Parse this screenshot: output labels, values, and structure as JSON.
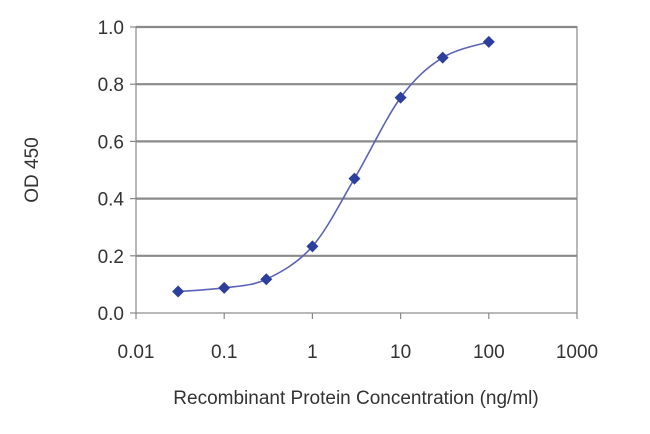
{
  "chart_data": {
    "type": "line",
    "title": "",
    "xlabel": "Recombinant Protein Concentration (ng/ml)",
    "ylabel": "OD 450",
    "x_scale": "log",
    "xlim": [
      0.01,
      1000
    ],
    "ylim": [
      0,
      1.0
    ],
    "x_ticks": [
      0.01,
      0.1,
      1,
      10,
      100,
      1000
    ],
    "x_tick_labels": [
      "0.01",
      "0.1",
      "1",
      "10",
      "100",
      "1000"
    ],
    "y_ticks": [
      0,
      0.2,
      0.4,
      0.6,
      0.8,
      1.0
    ],
    "y_tick_labels": [
      "0.0",
      "0.2",
      "0.4",
      "0.6",
      "0.8",
      "1.0"
    ],
    "grid": "horizontal",
    "legend": "none",
    "series": [
      {
        "x": [
          0.03,
          0.1,
          0.3,
          1,
          3,
          10,
          30,
          100
        ],
        "y": [
          0.075,
          0.088,
          0.118,
          0.233,
          0.47,
          0.753,
          0.893,
          0.948
        ],
        "color": "#2c3e9e",
        "marker": "diamond",
        "curve": "smooth"
      }
    ]
  }
}
